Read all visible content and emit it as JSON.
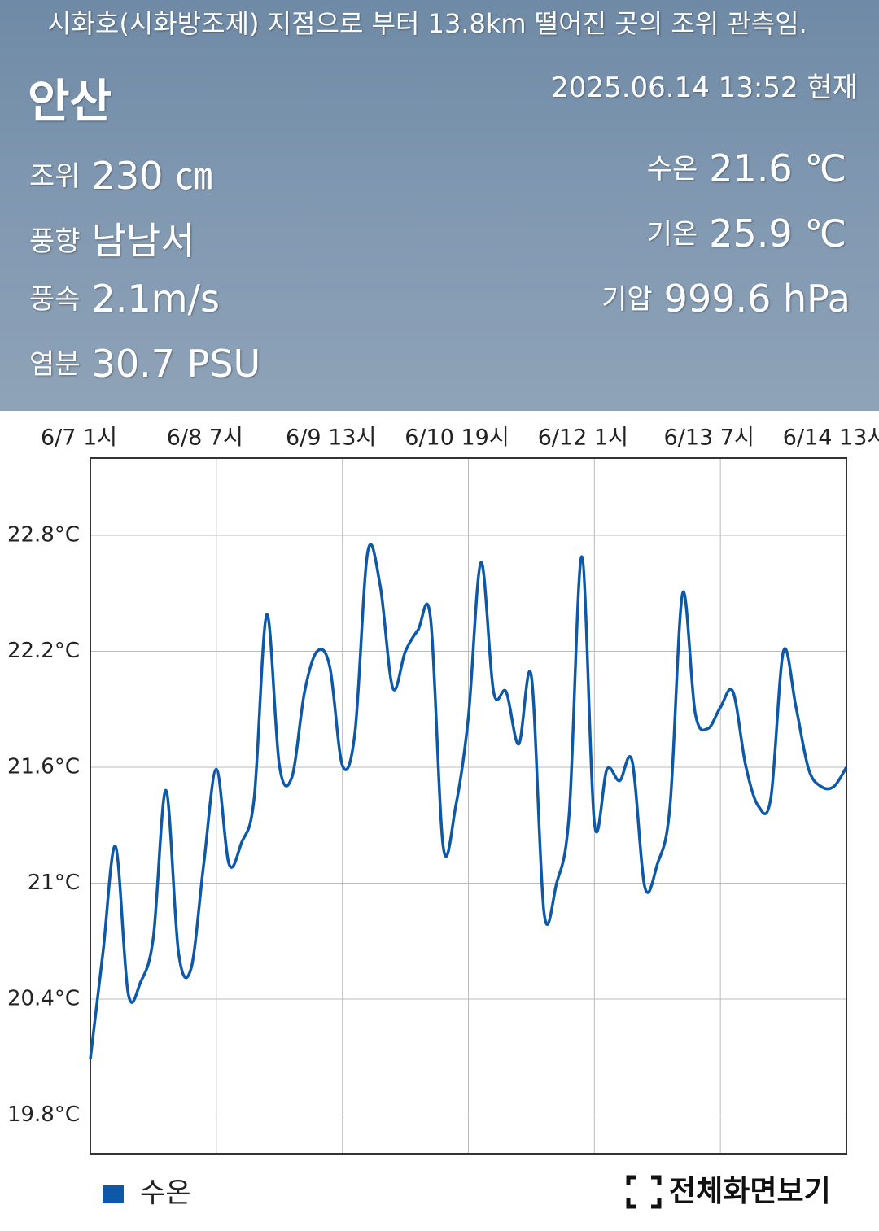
{
  "header": {
    "notice": "시화호(시화방조제) 지점으로 부터 13.8km 떨어진 곳의 조위 관측임.",
    "station": "안산",
    "timestamp": "2025.06.14 13:52 현재",
    "items": [
      {
        "label": "조위",
        "value": "230 ㎝"
      },
      {
        "label": "풍향",
        "value": "남남서"
      },
      {
        "label": "풍속",
        "value": "2.1m/s"
      },
      {
        "label": "염분",
        "value": "30.7 PSU"
      },
      {
        "label": "수온",
        "value": "21.6 ℃"
      },
      {
        "label": "기온",
        "value": "25.9 ℃"
      },
      {
        "label": "기압",
        "value": "999.6 hPa"
      }
    ]
  },
  "chart_data": {
    "type": "line",
    "x": [
      "6/7 1시",
      null,
      null,
      null,
      null,
      null,
      null,
      null,
      null,
      null,
      "6/8 7시",
      null,
      null,
      null,
      null,
      null,
      null,
      null,
      null,
      null,
      "6/9 13시",
      null,
      null,
      null,
      null,
      null,
      null,
      null,
      null,
      null,
      "6/10 19시",
      null,
      null,
      null,
      null,
      null,
      null,
      null,
      null,
      null,
      "6/12 1시",
      null,
      null,
      null,
      null,
      null,
      null,
      null,
      null,
      null,
      "6/13 7시",
      null,
      null,
      null,
      null,
      null,
      null,
      null,
      null,
      null,
      "6/14 13시"
    ],
    "series": [
      {
        "name": "수온",
        "color": "#0d59a8",
        "values": [
          20.09,
          20.64,
          21.19,
          20.43,
          20.49,
          20.72,
          21.48,
          20.64,
          20.56,
          21.1,
          21.59,
          21.1,
          21.21,
          21.44,
          22.39,
          21.61,
          21.55,
          21.99,
          22.2,
          22.12,
          21.61,
          21.78,
          22.71,
          22.54,
          22.01,
          22.2,
          22.31,
          22.37,
          21.19,
          21.4,
          21.86,
          22.66,
          21.99,
          21.99,
          21.72,
          22.07,
          20.85,
          21.0,
          21.36,
          22.69,
          21.31,
          21.59,
          21.53,
          21.63,
          20.98,
          21.1,
          21.4,
          22.5,
          21.88,
          21.8,
          21.91,
          21.99,
          21.61,
          21.4,
          21.44,
          22.2,
          21.91,
          21.59,
          21.5,
          21.5,
          21.6
        ]
      }
    ],
    "ylim": [
      19.6,
      23.2
    ],
    "yticks": [
      {
        "value": 19.8,
        "label": "19.8°C"
      },
      {
        "value": 20.4,
        "label": "20.4°C"
      },
      {
        "value": 21,
        "label": "21°C"
      },
      {
        "value": 21.6,
        "label": "21.6°C"
      },
      {
        "value": 22.2,
        "label": "22.2°C"
      },
      {
        "value": 22.8,
        "label": "22.8°C"
      }
    ],
    "grid": true
  },
  "button": "전체화면보기"
}
